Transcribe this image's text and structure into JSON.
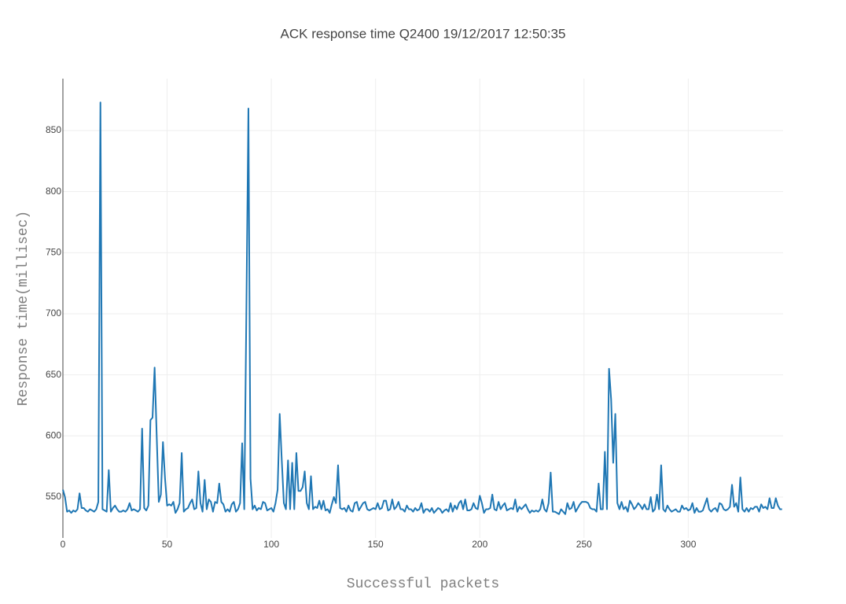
{
  "chart_data": {
    "type": "line",
    "title": "ACK response time Q2400 19/12/2017 12:50:35",
    "x_label": "Successful packets",
    "y_label": "Response time(millisec)",
    "xlim": [
      0,
      345.5
    ],
    "xticks": [
      0,
      50,
      100,
      150,
      200,
      250,
      300
    ],
    "ylim": [
      516.5,
      892.5
    ],
    "yticks": [
      550,
      600,
      650,
      700,
      750,
      800,
      850
    ],
    "grid": true,
    "x": [
      0,
      1,
      2,
      3,
      4,
      5,
      6,
      7,
      8,
      9,
      10,
      11,
      12,
      13,
      14,
      15,
      16,
      17,
      18,
      19,
      20,
      21,
      22,
      23,
      24,
      25,
      26,
      27,
      28,
      29,
      30,
      31,
      32,
      33,
      34,
      35,
      36,
      37,
      38,
      39,
      40,
      41,
      42,
      43,
      44,
      45,
      46,
      47,
      48,
      49,
      50,
      51,
      52,
      53,
      54,
      55,
      56,
      57,
      58,
      59,
      60,
      61,
      62,
      63,
      64,
      65,
      66,
      67,
      68,
      69,
      70,
      71,
      72,
      73,
      74,
      75,
      76,
      77,
      78,
      79,
      80,
      81,
      82,
      83,
      84,
      85,
      86,
      87,
      88,
      89,
      90,
      91,
      92,
      93,
      94,
      95,
      96,
      97,
      98,
      99,
      100,
      101,
      102,
      103,
      104,
      105,
      106,
      107,
      108,
      109,
      110,
      111,
      112,
      113,
      114,
      115,
      116,
      117,
      118,
      119,
      120,
      121,
      122,
      123,
      124,
      125,
      126,
      127,
      128,
      129,
      130,
      131,
      132,
      133,
      134,
      135,
      136,
      137,
      138,
      139,
      140,
      141,
      142,
      143,
      144,
      145,
      146,
      147,
      148,
      149,
      150,
      151,
      152,
      153,
      154,
      155,
      156,
      157,
      158,
      159,
      160,
      161,
      162,
      163,
      164,
      165,
      166,
      167,
      168,
      169,
      170,
      171,
      172,
      173,
      174,
      175,
      176,
      177,
      178,
      179,
      180,
      181,
      182,
      183,
      184,
      185,
      186,
      187,
      188,
      189,
      190,
      191,
      192,
      193,
      194,
      195,
      196,
      197,
      198,
      199,
      200,
      201,
      202,
      203,
      204,
      205,
      206,
      207,
      208,
      209,
      210,
      211,
      212,
      213,
      214,
      215,
      216,
      217,
      218,
      219,
      220,
      221,
      222,
      223,
      224,
      225,
      226,
      227,
      228,
      229,
      230,
      231,
      232,
      233,
      234,
      235,
      236,
      237,
      238,
      239,
      240,
      241,
      242,
      243,
      244,
      245,
      246,
      247,
      248,
      249,
      250,
      251,
      252,
      253,
      254,
      255,
      256,
      257,
      258,
      259,
      260,
      261,
      262,
      263,
      264,
      265,
      266,
      267,
      268,
      269,
      270,
      271,
      272,
      273,
      274,
      275,
      276,
      277,
      278,
      279,
      280,
      281,
      282,
      283,
      284,
      285,
      286,
      287,
      288,
      289,
      290,
      291,
      292,
      293,
      294,
      295,
      296,
      297,
      298,
      299,
      300,
      301,
      302,
      303,
      304,
      305,
      306,
      307,
      308,
      309,
      310,
      311,
      312,
      313,
      314,
      315,
      316,
      317,
      318,
      319,
      320,
      321,
      322,
      323,
      324,
      325,
      326,
      327,
      328,
      329,
      330,
      331,
      332,
      333,
      334,
      335,
      336,
      337,
      338,
      339,
      340,
      341,
      342,
      343,
      344,
      345
    ],
    "series": [
      {
        "color": "#1f77b4",
        "values": [
          556,
          550,
          538,
          539,
          537,
          539,
          538,
          540,
          553,
          541,
          541,
          539,
          538,
          540,
          539,
          538,
          540,
          546,
          873,
          540,
          539,
          538,
          572,
          538,
          541,
          543,
          540,
          538,
          538,
          539,
          538,
          540,
          545,
          539,
          540,
          539,
          538,
          540,
          606,
          541,
          539,
          543,
          613,
          615,
          656,
          600,
          546,
          552,
          595,
          565,
          543,
          544,
          543,
          546,
          537,
          540,
          545,
          586,
          538,
          540,
          541,
          545,
          548,
          540,
          541,
          571,
          545,
          538,
          564,
          540,
          548,
          546,
          538,
          546,
          545,
          561,
          546,
          544,
          538,
          540,
          538,
          544,
          546,
          538,
          540,
          545,
          594,
          540,
          700,
          868,
          565,
          540,
          543,
          539,
          541,
          540,
          546,
          545,
          539,
          540,
          541,
          538,
          545,
          556,
          618,
          580,
          545,
          540,
          580,
          540,
          578,
          540,
          586,
          555,
          555,
          558,
          571,
          545,
          540,
          567,
          540,
          542,
          541,
          547,
          540,
          547,
          539,
          540,
          537,
          544,
          550,
          545,
          576,
          541,
          540,
          541,
          538,
          543,
          539,
          538,
          545,
          546,
          539,
          542,
          545,
          546,
          540,
          539,
          540,
          541,
          540,
          545,
          540,
          541,
          547,
          547,
          539,
          540,
          548,
          540,
          542,
          546,
          540,
          540,
          538,
          543,
          540,
          540,
          538,
          541,
          539,
          540,
          545,
          537,
          540,
          540,
          538,
          541,
          537,
          539,
          541,
          540,
          537,
          539,
          540,
          538,
          545,
          538,
          543,
          540,
          545,
          547,
          540,
          548,
          539,
          539,
          540,
          545,
          541,
          540,
          551,
          545,
          537,
          540,
          540,
          541,
          552,
          540,
          539,
          546,
          540,
          543,
          545,
          539,
          540,
          541,
          540,
          548,
          538,
          542,
          540,
          542,
          544,
          540,
          537,
          539,
          538,
          539,
          538,
          540,
          548,
          540,
          538,
          545,
          570,
          538,
          538,
          537,
          536,
          540,
          538,
          536,
          545,
          540,
          541,
          546,
          538,
          541,
          544,
          546,
          546,
          546,
          545,
          541,
          540,
          540,
          538,
          561,
          540,
          540,
          587,
          540,
          655,
          630,
          578,
          618,
          545,
          540,
          546,
          540,
          542,
          538,
          547,
          544,
          540,
          542,
          545,
          543,
          540,
          544,
          540,
          540,
          550,
          538,
          540,
          552,
          540,
          576,
          540,
          538,
          543,
          540,
          538,
          539,
          540,
          538,
          538,
          543,
          540,
          541,
          539,
          540,
          545,
          537,
          541,
          538,
          538,
          539,
          544,
          549,
          540,
          538,
          540,
          541,
          538,
          545,
          544,
          540,
          539,
          540,
          542,
          560,
          542,
          545,
          538,
          566,
          540,
          538,
          541,
          538,
          541,
          540,
          542,
          542,
          538,
          544,
          541,
          542,
          540,
          549,
          541,
          541,
          549,
          543,
          540,
          540
        ]
      }
    ]
  }
}
